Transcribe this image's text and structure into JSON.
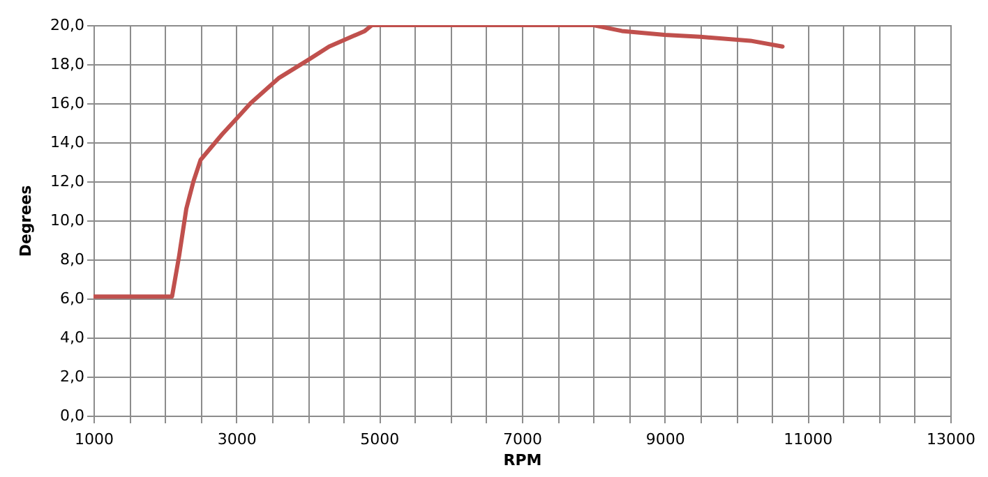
{
  "chart_data": {
    "type": "line",
    "xlabel": "RPM",
    "ylabel": "Degrees",
    "x": [
      1000,
      2100,
      2200,
      2300,
      2400,
      2500,
      2800,
      3000,
      3200,
      3600,
      4000,
      4300,
      4800,
      4900,
      8000,
      8400,
      9000,
      9500,
      10200,
      10650
    ],
    "series": [
      {
        "color": "#c0504d",
        "values": [
          6.1,
          6.1,
          8.2,
          10.6,
          12.0,
          13.1,
          14.4,
          15.2,
          16.0,
          17.3,
          18.2,
          18.9,
          19.7,
          20.0,
          20.0,
          19.7,
          19.5,
          19.4,
          19.2,
          18.9
        ]
      }
    ],
    "xlim": [
      1000,
      13000
    ],
    "xticks": [
      1000,
      {
        "value": 1500,
        "label": null
      },
      {
        "value": 2000,
        "label": null
      },
      {
        "value": 2500,
        "label": null
      },
      3000,
      {
        "value": 3500,
        "label": null
      },
      {
        "value": 4000,
        "label": null
      },
      {
        "value": 4500,
        "label": null
      },
      5000,
      {
        "value": 5500,
        "label": null
      },
      {
        "value": 6000,
        "label": null
      },
      {
        "value": 6500,
        "label": null
      },
      7000,
      {
        "value": 7500,
        "label": null
      },
      {
        "value": 8000,
        "label": null
      },
      {
        "value": 8500,
        "label": null
      },
      9000,
      {
        "value": 9500,
        "label": null
      },
      {
        "value": 10000,
        "label": null
      },
      {
        "value": 10500,
        "label": null
      },
      11000,
      {
        "value": 11500,
        "label": null
      },
      {
        "value": 12000,
        "label": null
      },
      {
        "value": 12500,
        "label": null
      },
      13000
    ],
    "ylim": [
      0,
      20
    ],
    "yticks": [
      {
        "value": 0,
        "label": "0,0"
      },
      {
        "value": 2,
        "label": "2,0"
      },
      {
        "value": 4,
        "label": "4,0"
      },
      {
        "value": 6,
        "label": "6,0"
      },
      {
        "value": 8,
        "label": "8,0"
      },
      {
        "value": 10,
        "label": "10,0"
      },
      {
        "value": 12,
        "label": "12,0"
      },
      {
        "value": 14,
        "label": "14,0"
      },
      {
        "value": 16,
        "label": "16,0"
      },
      {
        "value": 18,
        "label": "18,0"
      },
      {
        "value": 20,
        "label": "20,0"
      }
    ],
    "grid": true,
    "marker": "none",
    "line_style": "solid"
  }
}
